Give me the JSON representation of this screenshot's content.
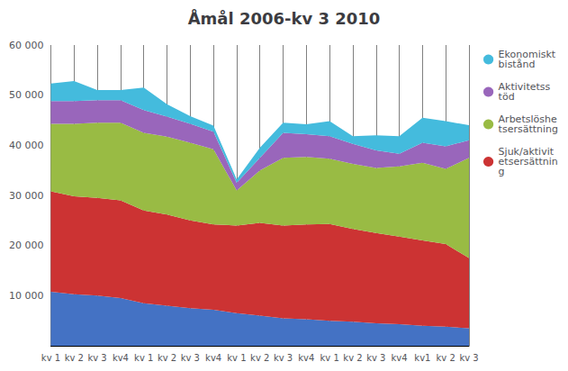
{
  "chart_data": {
    "type": "area",
    "stacked": true,
    "title": "Åmål 2006-kv 3 2010",
    "categories": [
      "kv 1",
      "kv 2",
      "kv 3",
      "kv4",
      "kv 1",
      "kv 2",
      "kv 3",
      "kv4",
      "kv 1",
      "kv 2",
      "kv 3",
      "kv4",
      "kv 1",
      "kv 2",
      "kv 3",
      "kv4",
      "kv1",
      "kv 2",
      "kv 3"
    ],
    "series": [
      {
        "color": "#4472C4",
        "values": [
          10800,
          10300,
          10000,
          9500,
          8500,
          8000,
          7500,
          7200,
          6500,
          6000,
          5500,
          5300,
          5000,
          4800,
          4500,
          4300,
          4000,
          3800,
          3500
        ]
      },
      {
        "name": "Sjuk/aktivit\netsersättnin\ng",
        "color": "#CC3333",
        "values": [
          20000,
          19500,
          19500,
          19500,
          18500,
          18200,
          17500,
          17000,
          17500,
          18500,
          18500,
          18900,
          19300,
          18500,
          18000,
          17500,
          17000,
          16500,
          14000
        ]
      },
      {
        "name": "Arbetslöshe\ntsersättning",
        "color": "#99BB44",
        "values": [
          13500,
          14500,
          15000,
          15500,
          15500,
          15500,
          15500,
          15000,
          7000,
          10500,
          13500,
          13500,
          13000,
          13000,
          13000,
          14000,
          15500,
          15000,
          20000
        ]
      },
      {
        "name": "Aktivitetss\ntöd",
        "color": "#9966BB",
        "values": [
          4500,
          4500,
          4500,
          4500,
          4500,
          4000,
          3800,
          3500,
          1500,
          2500,
          5000,
          4500,
          4500,
          4000,
          3500,
          2500,
          4000,
          4500,
          3500
        ]
      },
      {
        "name": "Ekonomiskt\nbistånd",
        "color": "#44BBDD",
        "values": [
          3500,
          4000,
          2000,
          2000,
          4500,
          2500,
          1500,
          1200,
          700,
          2000,
          2000,
          2000,
          3000,
          1500,
          3000,
          3500,
          5000,
          5000,
          3000
        ]
      }
    ],
    "ylim": [
      0,
      60000
    ],
    "yticks": [
      {
        "value": 0,
        "label": ""
      },
      {
        "value": 10000,
        "label": "10 000"
      },
      {
        "value": 20000,
        "label": "20 000"
      },
      {
        "value": 30000,
        "label": "30 000"
      },
      {
        "value": 40000,
        "label": "40 000"
      },
      {
        "value": 50000,
        "label": "50 000"
      },
      {
        "value": 60000,
        "label": "60 000"
      }
    ],
    "grid": "x",
    "legend": "right"
  }
}
